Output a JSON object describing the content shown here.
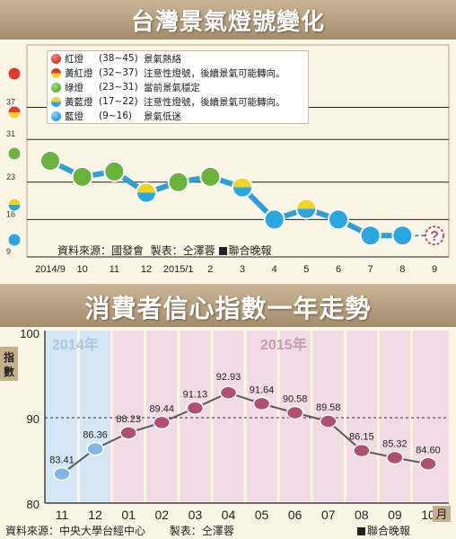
{
  "panel1": {
    "title": "台灣景氣燈號變化",
    "source": "資料來源：國發會",
    "producer": "製表：仝澤蓉",
    "publisher": "聯合晚報",
    "legend": [
      {
        "name": "紅燈",
        "range": "(38~45)",
        "desc": "景氣熱絡",
        "color": "red-light"
      },
      {
        "name": "黃紅燈",
        "range": "(32~37)",
        "desc": "注意性燈號，後續景氣可能轉向。",
        "color": "yellow-red-light"
      },
      {
        "name": "綠燈",
        "range": "(23~31)",
        "desc": "當前景氣穩定",
        "color": "green-light"
      },
      {
        "name": "黃藍燈",
        "range": "(17~22)",
        "desc": "注意性燈號，後續景氣可能轉向。",
        "color": "yellow-blue-light"
      },
      {
        "name": "藍燈",
        "range": "(9~16)",
        "desc": "景氣低迷",
        "color": "blue-light"
      }
    ],
    "unknown_marker": "?"
  },
  "panel2": {
    "title": "消費者信心指數一年走勢",
    "year_left": "2014年",
    "year_right": "2015年",
    "ylabel": "指數",
    "xunit": "月",
    "source": "資料來源：中央大學台經中心",
    "producer": "製表：仝澤蓉",
    "publisher": "聯合晚報"
  },
  "colors": {
    "red": "#e2392a",
    "yellow": "#f5d321",
    "green": "#6ab33c",
    "blue": "#2aa6e0",
    "line1": "#2f9fd8",
    "line2": "#5a5a5a",
    "point_past": "#7fb6e3",
    "point_current": "#b0506e",
    "band_2014": "#d5e6f4",
    "band_2015": "#f2dbe4"
  },
  "chart_data": [
    {
      "type": "line",
      "title": "台灣景氣燈號變化",
      "categories": [
        "2014/9",
        "10",
        "11",
        "12",
        "2015/1",
        "2",
        "3",
        "4",
        "5",
        "6",
        "7",
        "8",
        "9"
      ],
      "yticks": [
        9,
        16,
        23,
        31,
        37
      ],
      "ylim": [
        9,
        45
      ],
      "lights": [
        "green",
        "green",
        "green",
        "yellow-blue",
        "green",
        "green",
        "yellow-blue",
        "blue",
        "yellow-blue",
        "blue",
        "blue",
        "blue",
        "unknown"
      ],
      "values": [
        27,
        24,
        25,
        21,
        23,
        24,
        22,
        16,
        18,
        16,
        13,
        13,
        null
      ],
      "ytick_lights": [
        "blue",
        "yellow-blue",
        "green",
        "yellow-red",
        "red"
      ],
      "grid": true,
      "legend_position": "top-left"
    },
    {
      "type": "line",
      "title": "消費者信心指數一年走勢",
      "categories": [
        "11",
        "12",
        "01",
        "02",
        "03",
        "04",
        "05",
        "06",
        "07",
        "08",
        "09",
        "10"
      ],
      "values": [
        83.41,
        86.36,
        88.23,
        89.44,
        91.13,
        92.93,
        91.64,
        90.58,
        89.58,
        86.15,
        85.32,
        84.6
      ],
      "labels": [
        "83.41",
        "86.36",
        "88.23",
        "89.44",
        "91.13",
        "92.93",
        "91.64",
        "90.58",
        "89.58",
        "86.15",
        "85.32",
        "84.60"
      ],
      "yticks": [
        80,
        90,
        100
      ],
      "ylim": [
        80,
        100
      ],
      "reference_line": 90,
      "ylabel": "指數",
      "xlabel": "月"
    }
  ]
}
